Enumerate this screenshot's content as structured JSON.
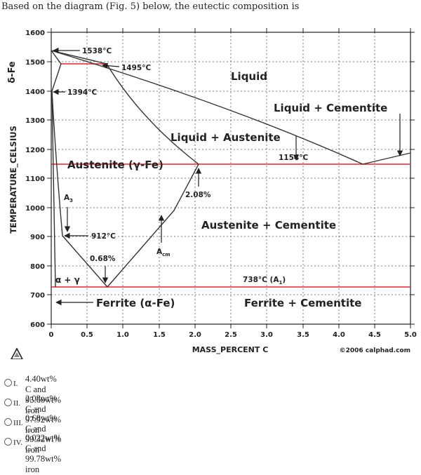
{
  "question": "Based on the diagram (Fig. 5)  below, the eutectic composition is",
  "diagram": {
    "y_axis_label": "TEMPERATURE_CELSIUS",
    "x_axis_label": "MASS_PERCENT C",
    "copyright": "©2006 calphad.com",
    "delta_label": "δ-Fe",
    "y_ticks": [
      "1600",
      "1500",
      "1400",
      "1300",
      "1200",
      "1100",
      "1000",
      "900",
      "800",
      "700",
      "600"
    ],
    "x_ticks": [
      "0",
      "0.5",
      "1.0",
      "1.5",
      "2.0",
      "2.5",
      "3.0",
      "3.5",
      "4.0",
      "4.5",
      "5.0"
    ],
    "labels": {
      "t1538": "1538°C",
      "t1495": "1495°C",
      "t1394": "1394°C",
      "t1154": "1154°C",
      "t912": "912°C",
      "t738": "738°C (A",
      "t738_sub": "1",
      "t738_close": ")",
      "p208": "2.08%",
      "p068": "0.68%",
      "a3": "A",
      "a3_sub": "3",
      "acm": "A",
      "acm_sub": "cm",
      "liquid": "Liquid",
      "liquid_cementite": "Liquid + Cementite",
      "liquid_austenite": "Liquid + Austenite",
      "austenite": "Austenite (γ-Fe)",
      "austenite_cementite": "Austenite + Cementite",
      "alpha_gamma": "α + γ",
      "ferrite": "Ferrite (α-Fe)",
      "ferrite_cementite": "Ferrite + Cementite"
    },
    "colors": {
      "invariant_line": "#e8262e",
      "phase_line": "#333333"
    }
  },
  "options": [
    {
      "num": "I.",
      "text": "4.40wt% C and 95.60wt% iron"
    },
    {
      "num": "II.",
      "text": "2.08wt% C and 97.92wt% iron"
    },
    {
      "num": "III.",
      "text": "0.68wt% C and 99.32wt% iron"
    },
    {
      "num": "IV.",
      "text": "0.022wt% C and 99.78wt% iron"
    }
  ]
}
